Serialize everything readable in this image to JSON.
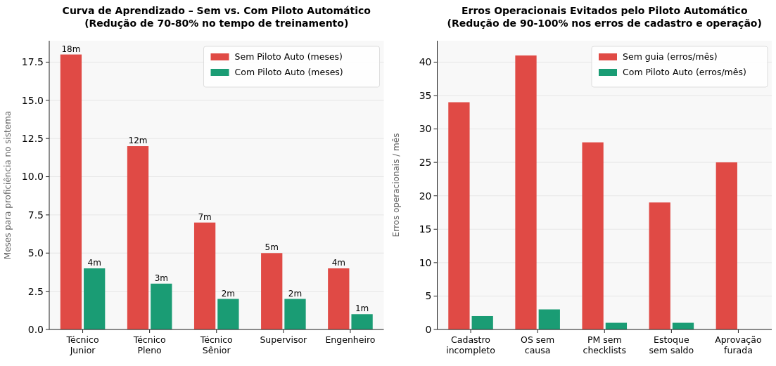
{
  "chart_data": [
    {
      "type": "bar",
      "title": "Curva de Aprendizado – Sem vs. Com Piloto Automático",
      "subtitle": "(Redução de 70-80% no tempo de treinamento)",
      "ylabel": "Meses para proficiência no sistema",
      "categories": [
        "Técnico\nJunior",
        "Técnico\nPleno",
        "Técnico\nSênior",
        "Supervisor",
        "Engenheiro"
      ],
      "series": [
        {
          "name": "Sem Piloto Auto (meses)",
          "color": "#e04a45",
          "values": [
            18,
            12,
            7,
            5,
            4
          ],
          "value_labels": [
            "18m",
            "12m",
            "7m",
            "5m",
            "4m"
          ]
        },
        {
          "name": "Com Piloto Auto (meses)",
          "color": "#1a9c74",
          "values": [
            4,
            3,
            2,
            2,
            1
          ],
          "value_labels": [
            "4m",
            "3m",
            "2m",
            "2m",
            "1m"
          ]
        }
      ],
      "ylim": [
        0,
        18.9
      ],
      "yticks": [
        {
          "value": 0,
          "label": "0.0"
        },
        {
          "value": 2.5,
          "label": "2.5"
        },
        {
          "value": 5,
          "label": "5.0"
        },
        {
          "value": 7.5,
          "label": "7.5"
        },
        {
          "value": 10,
          "label": "10.0"
        },
        {
          "value": 12.5,
          "label": "12.5"
        },
        {
          "value": 15,
          "label": "15.0"
        },
        {
          "value": 17.5,
          "label": "17.5"
        }
      ],
      "grid": "y",
      "legend": "top right"
    },
    {
      "type": "bar",
      "title": "Erros Operacionais Evitados pelo Piloto Automático",
      "subtitle": "(Redução de 90-100% nos erros de cadastro e operação)",
      "ylabel": "Erros operacionais / mês",
      "categories": [
        "Cadastro\nincompleto",
        "OS sem\ncausa",
        "PM sem\nchecklists",
        "Estoque\nsem saldo",
        "Aprovação\nfurada"
      ],
      "series": [
        {
          "name": "Sem guia (erros/mês)",
          "color": "#e04a45",
          "values": [
            34,
            41,
            28,
            19,
            25
          ]
        },
        {
          "name": "Com Piloto Auto (erros/mês)",
          "color": "#1a9c74",
          "values": [
            2,
            3,
            1,
            1,
            0
          ]
        }
      ],
      "ylim": [
        0,
        43.2
      ],
      "yticks": [
        0,
        5,
        10,
        15,
        20,
        25,
        30,
        35,
        40
      ],
      "grid": "y",
      "legend": "top right"
    }
  ]
}
